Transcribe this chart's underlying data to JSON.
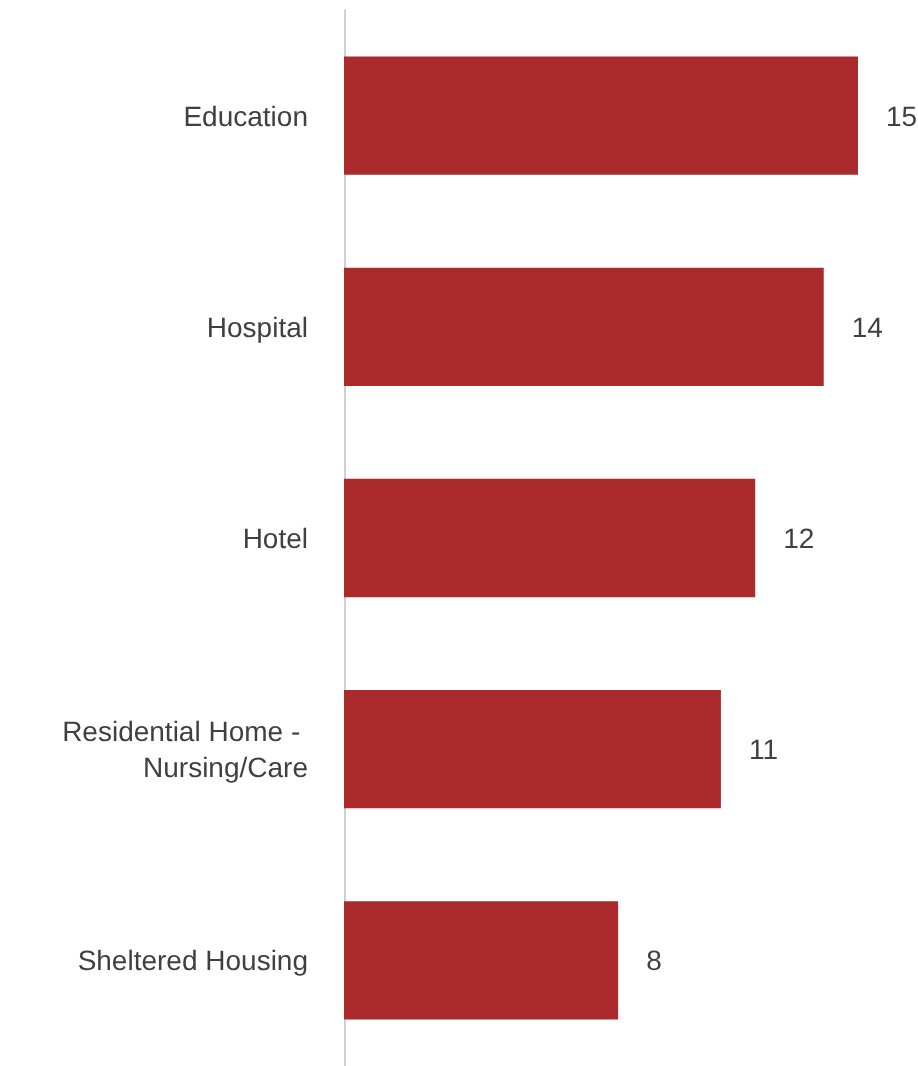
{
  "chart_data": {
    "type": "bar",
    "orientation": "horizontal",
    "categories": [
      "Education",
      "Hospital",
      "Hotel",
      "Residential Home - Nursing/Care",
      "Sheltered Housing"
    ],
    "values": [
      15,
      14,
      12,
      11,
      8
    ],
    "color": "#ab2a2c",
    "data_labels": true
  }
}
